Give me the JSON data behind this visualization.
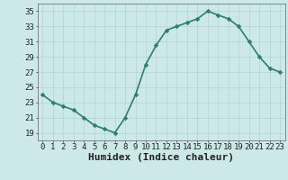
{
  "x": [
    0,
    1,
    2,
    3,
    4,
    5,
    6,
    7,
    8,
    9,
    10,
    11,
    12,
    13,
    14,
    15,
    16,
    17,
    18,
    19,
    20,
    21,
    22,
    23
  ],
  "y": [
    24,
    23,
    22.5,
    22,
    21,
    20,
    19.5,
    19,
    21,
    24,
    28,
    30.5,
    32.5,
    33,
    33.5,
    34,
    35,
    34.5,
    34,
    33,
    31,
    29,
    27.5,
    27
  ],
  "xlabel": "Humidex (Indice chaleur)",
  "ylim": [
    18,
    36
  ],
  "xlim": [
    -0.5,
    23.5
  ],
  "yticks": [
    19,
    21,
    23,
    25,
    27,
    29,
    31,
    33,
    35
  ],
  "xticks": [
    0,
    1,
    2,
    3,
    4,
    5,
    6,
    7,
    8,
    9,
    10,
    11,
    12,
    13,
    14,
    15,
    16,
    17,
    18,
    19,
    20,
    21,
    22,
    23
  ],
  "line_color": "#2e7d6e",
  "marker_color": "#2e7d6e",
  "bg_color": "#cce8e8",
  "grid_color": "#b0d4d4",
  "marker": "D",
  "markersize": 2.5,
  "linewidth": 1.2,
  "xlabel_fontsize": 8,
  "tick_fontsize": 6.5
}
